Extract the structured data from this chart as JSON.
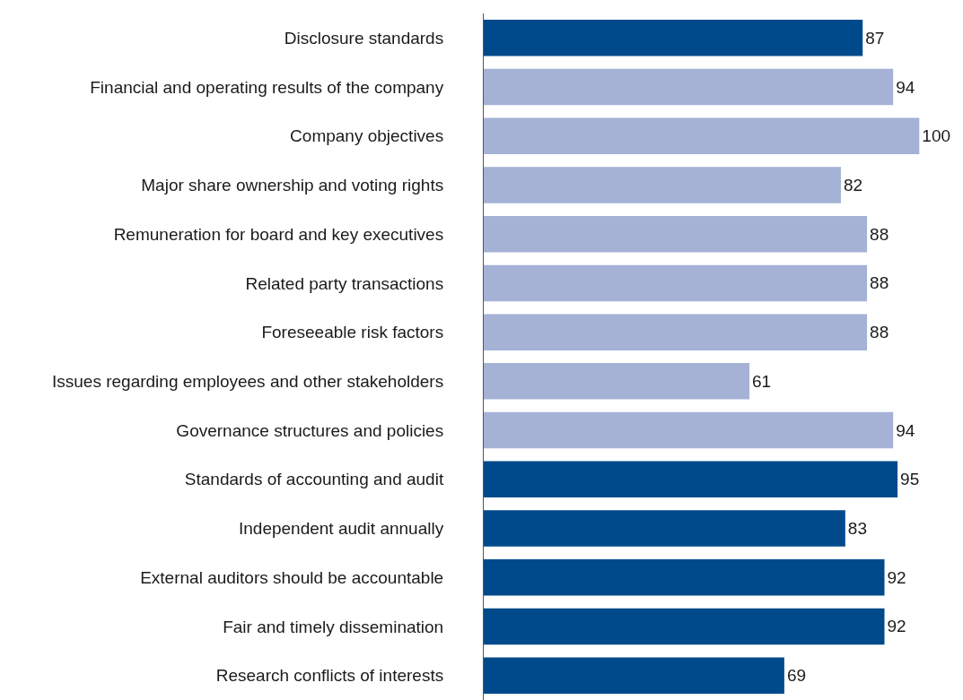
{
  "chart_data": {
    "type": "bar",
    "orientation": "horizontal",
    "data_labels": true,
    "categories": [
      "Disclosure standards",
      "Financial and operating results of the company",
      "Company objectives",
      "Major share ownership and voting rights",
      "Remuneration for board and key executives",
      "Related party transactions",
      "Foreseeable risk factors",
      "Issues regarding employees and other stakeholders",
      "Governance structures and policies",
      "Standards of accounting and audit",
      "Independent audit annually",
      "External auditors should be accountable",
      "Fair and timely dissemination",
      "Research conflicts of interests"
    ],
    "values": [
      87,
      94,
      100,
      82,
      88,
      88,
      88,
      61,
      94,
      95,
      83,
      92,
      92,
      69
    ],
    "colors": [
      "#004a8c",
      "#a5b2d6",
      "#a5b2d6",
      "#a5b2d6",
      "#a5b2d6",
      "#a5b2d6",
      "#a5b2d6",
      "#a5b2d6",
      "#a5b2d6",
      "#004a8c",
      "#004a8c",
      "#004a8c",
      "#004a8c",
      "#004a8c"
    ]
  }
}
